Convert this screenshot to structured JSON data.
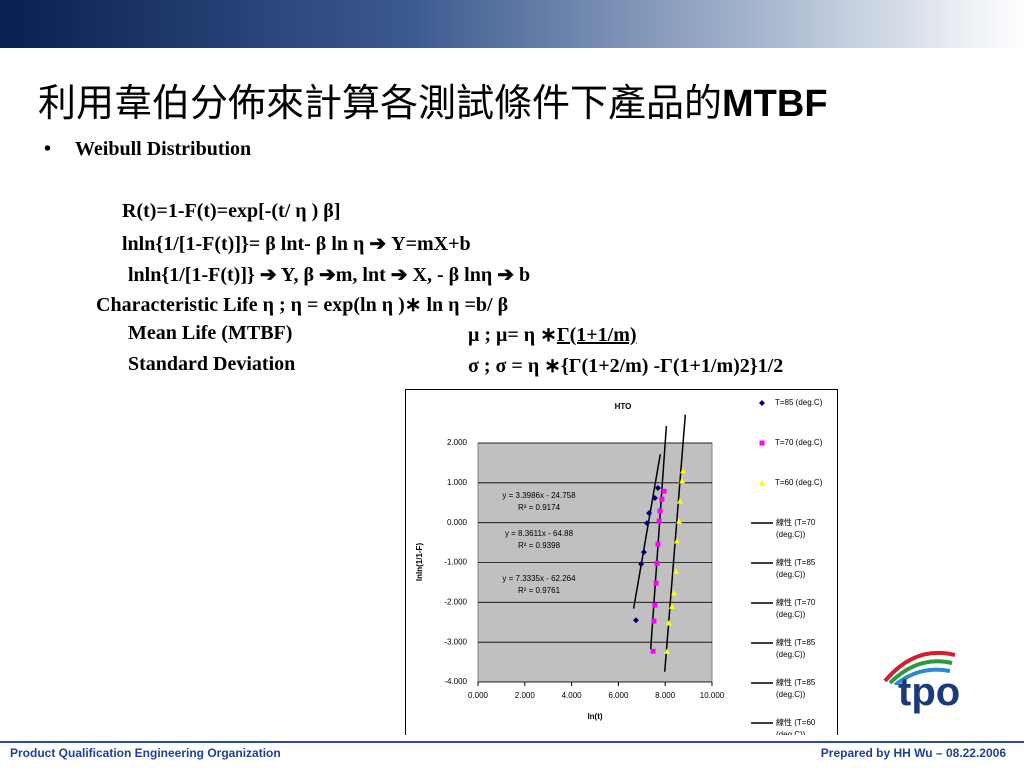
{
  "header": {
    "title_cjk": "利用韋伯分佈來計算各測試條件下產品的",
    "title_latin": "MTBF"
  },
  "bullet": "Weibull Distribution",
  "formulas": {
    "line1": "R(t)=1-F(t)=exp[-(t/ η ) β]",
    "line2": "lnln{1/[1-F(t)]}= β lnt- β ln η  ➔ Y=mX+b",
    "line3": "lnln{1/[1-F(t)]} ➔ Y,   β ➔m,   lnt ➔ X,   - β lnη ➔ b",
    "line4": "Characteristic Life η ;  η = exp(ln η )∗ ln η =b/ β",
    "mean_label": "Mean Life (MTBF)",
    "mean_formula_a": "μ ; μ= η ∗",
    "mean_formula_b": "Γ(1+1/m)",
    "sd_label": "Standard Deviation",
    "sd_formula": "σ ; σ = η ∗{Γ(1+2/m) -Γ(1+1/m)2}1/2"
  },
  "chart_data": {
    "type": "scatter",
    "title": "HTO",
    "x_label": "ln(t)",
    "y_label": "lnln(1/1-F)",
    "xlim": [
      0,
      10
    ],
    "xticks": [
      {
        "value": 0,
        "label": "0.000"
      },
      {
        "value": 2,
        "label": "2.000"
      },
      {
        "value": 4,
        "label": "4.000"
      },
      {
        "value": 6,
        "label": "6.000"
      },
      {
        "value": 8,
        "label": "8.000"
      },
      {
        "value": 10,
        "label": "10.000"
      }
    ],
    "ylim": [
      -4,
      2
    ],
    "yticks": [
      {
        "value": -4,
        "label": "-4.000"
      },
      {
        "value": -3,
        "label": "-3.000"
      },
      {
        "value": -2,
        "label": "-2.000"
      },
      {
        "value": -1,
        "label": "-1.000"
      },
      {
        "value": 0,
        "label": "0.000"
      },
      {
        "value": 1,
        "label": "1.000"
      },
      {
        "value": 2,
        "label": "2.000"
      }
    ],
    "grid": true,
    "series": [
      {
        "name": "T=85 (deg.C)",
        "color": "#000080",
        "marker": "diamond",
        "x": [
          6.75,
          6.97,
          7.09,
          7.22,
          7.31,
          7.56,
          7.69
        ],
        "values": [
          -2.45,
          -1.04,
          -0.74,
          -0.01,
          0.24,
          0.62,
          0.87
        ],
        "trend": {
          "equation": "y = 3.3986x - 24.758",
          "r2": "R² = 0.9174",
          "slope": 3.3986,
          "intercept": -24.758
        }
      },
      {
        "name": "T=70 (deg.C)",
        "color": "#ff00ff",
        "marker": "square",
        "x": [
          7.48,
          7.52,
          7.56,
          7.61,
          7.65,
          7.69,
          7.74,
          7.78,
          7.86,
          7.95
        ],
        "values": [
          -3.23,
          -2.47,
          -2.07,
          -1.52,
          -1.02,
          -0.54,
          0.04,
          0.29,
          0.59,
          0.79
        ],
        "trend": {
          "equation": "y = 8.3611x - 64.88",
          "r2": "R² = 0.9398",
          "slope": 8.3611,
          "intercept": -64.88
        }
      },
      {
        "name": "T=60 (deg.C)",
        "color": "#ffff00",
        "marker": "triangle",
        "x": [
          8.08,
          8.16,
          8.29,
          8.38,
          8.46,
          8.5,
          8.59,
          8.63,
          8.72,
          8.76
        ],
        "values": [
          -3.23,
          -2.52,
          -2.1,
          -1.77,
          -1.22,
          -0.46,
          0.04,
          0.54,
          1.05,
          1.3
        ],
        "trend": {
          "equation": "y = 7.3335x - 62.264",
          "r2": "R² = 0.9761",
          "slope": 7.3335,
          "intercept": -62.264
        }
      }
    ],
    "trend_legend": [
      [
        "線性 (T=70",
        "(deg.C))"
      ],
      [
        "線性 (T=85",
        "(deg.C))"
      ],
      [
        "線性 (T=70",
        "(deg.C))"
      ],
      [
        "線性 (T=85",
        "(deg.C))"
      ],
      [
        "線性 (T=85",
        "(deg.C))"
      ],
      [
        "線性 (T=60",
        "(deg.C))"
      ]
    ]
  },
  "logo": "tpo",
  "footer": {
    "left": "Product Qualification Engineering Organization",
    "right": "Prepared by HH Wu – 08.22.2006"
  }
}
